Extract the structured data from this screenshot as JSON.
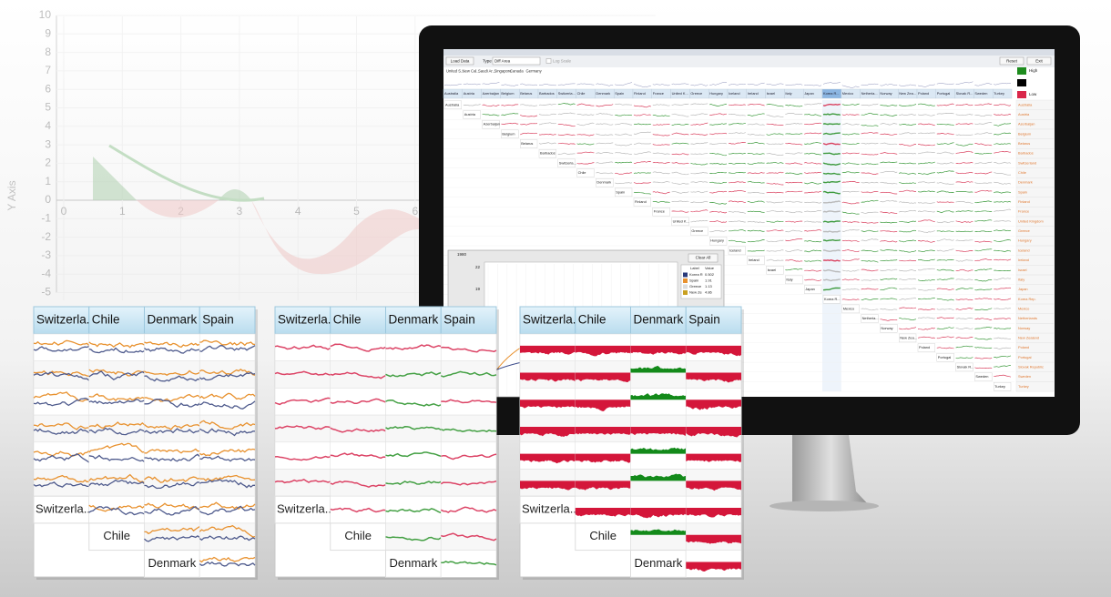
{
  "background_chart": {
    "y_axis_label": "Y Axis",
    "yticks": [
      10,
      9,
      8,
      7,
      6,
      5,
      4,
      3,
      2,
      1,
      0,
      -1,
      -2,
      -3,
      -4,
      -5
    ],
    "xticks": [
      0,
      1,
      2,
      3,
      4,
      5,
      6
    ]
  },
  "app_window": {
    "buttons": [
      "Load Data",
      "Reset",
      "Exit"
    ],
    "type_label": "Type",
    "type_value": "Diff Area",
    "log_scale": "Log Scale",
    "selected_countries": [
      "United S...",
      "New Cal...",
      "Saudi Ar...",
      "Singapore",
      "Canada",
      "Germany"
    ],
    "legend": {
      "high": "High",
      "low": "Low"
    },
    "column_headers": [
      "Australia",
      "Austria",
      "Azerbaijan",
      "Belgium",
      "Belarus",
      "Barbados",
      "Switzerla...",
      "Chile",
      "Denmark",
      "Spain",
      "Finland",
      "France",
      "United K...",
      "Greece",
      "Hungary",
      "Iceland",
      "Ireland",
      "Israel",
      "Italy",
      "Japan",
      "Korea R...",
      "Mexico",
      "Netherla...",
      "Norway",
      "New Zea...",
      "Poland",
      "Portugal",
      "Slovak R...",
      "Sweden",
      "Turkey"
    ],
    "country_list": [
      "Australia",
      "Austria",
      "Azerbaijan",
      "Belgium",
      "Belarus",
      "Barbados",
      "Switzerland",
      "Chile",
      "Denmark",
      "Spain",
      "Finland",
      "France",
      "United Kingdom",
      "Greece",
      "Hungary",
      "Iceland",
      "Ireland",
      "Israel",
      "Italy",
      "Japan",
      "Korea Rep.",
      "Mexico",
      "Netherlands",
      "Norway",
      "New Zealand",
      "Poland",
      "Portugal",
      "Slovak Republic",
      "Sweden",
      "Turkey"
    ],
    "dialog": {
      "year": "1980",
      "clear": "Clear All",
      "columns": [
        "Label",
        "Value"
      ],
      "rows": [
        [
          "Korea R",
          0.502
        ],
        [
          "Spain",
          1.91
        ],
        [
          "Greece",
          1.13
        ],
        [
          "New Ze",
          4.86
        ]
      ],
      "yticks": [
        22,
        19
      ]
    }
  },
  "panels": [
    {
      "headers": [
        "Switzerla...",
        "Chile",
        "Denmark",
        "Spain"
      ],
      "diagonal": [
        "Switzerla...",
        "Chile",
        "Denmark"
      ]
    },
    {
      "headers": [
        "Switzerla...",
        "Chile",
        "Denmark",
        "Spain"
      ],
      "diagonal": [
        "Switzerla...",
        "Chile",
        "Denmark"
      ]
    },
    {
      "headers": [
        "Switzerla...",
        "Chile",
        "Denmark",
        "Spain"
      ],
      "diagonal": [
        "Switzerla...",
        "Chile",
        "Denmark"
      ]
    }
  ]
}
